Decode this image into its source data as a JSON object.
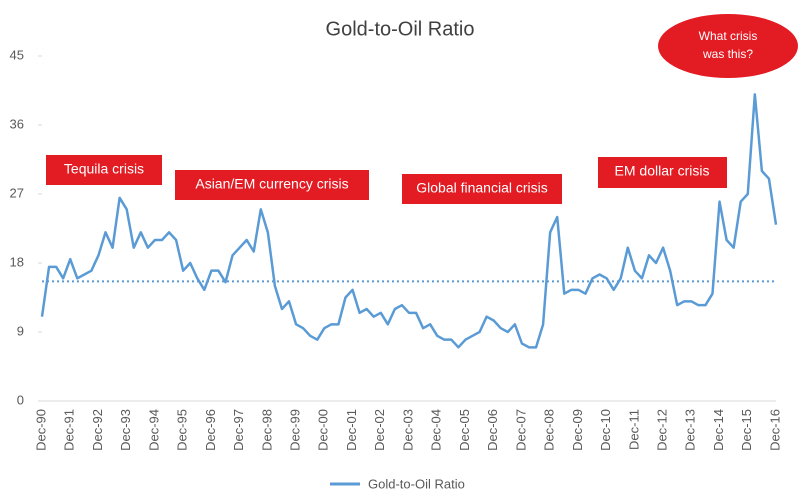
{
  "chart_data": {
    "type": "line",
    "title": "Gold-to-Oil Ratio",
    "categories": [
      "Dec-90",
      null,
      null,
      null,
      "Dec-91",
      null,
      null,
      null,
      "Dec-92",
      null,
      null,
      null,
      "Dec-93",
      null,
      null,
      null,
      "Dec-94",
      null,
      null,
      null,
      "Dec-95",
      null,
      null,
      null,
      "Dec-96",
      null,
      null,
      null,
      "Dec-97",
      null,
      null,
      null,
      "Dec-98",
      null,
      null,
      null,
      "Dec-99",
      null,
      null,
      null,
      "Dec-00",
      null,
      null,
      null,
      "Dec-01",
      null,
      null,
      null,
      "Dec-02",
      null,
      null,
      null,
      "Dec-03",
      null,
      null,
      null,
      "Dec-04",
      null,
      null,
      null,
      "Dec-05",
      null,
      null,
      null,
      "Dec-06",
      null,
      null,
      null,
      "Dec-07",
      null,
      null,
      null,
      "Dec-08",
      null,
      null,
      null,
      "Dec-09",
      null,
      null,
      null,
      "Dec-10",
      null,
      null,
      null,
      "Dec-11",
      null,
      null,
      null,
      "Dec-12",
      null,
      null,
      null,
      "Dec-13",
      null,
      null,
      null,
      "Dec-14",
      null,
      null,
      null,
      "Dec-15",
      null,
      null,
      null,
      "Dec-16"
    ],
    "series": [
      {
        "name": "Gold-to-Oil Ratio",
        "color": "#5b9bd5",
        "values": [
          11,
          17.5,
          17.5,
          16,
          18.5,
          16,
          16.5,
          17,
          19,
          22,
          20,
          26.5,
          25,
          20,
          22,
          20,
          21,
          21,
          22,
          21,
          17,
          18,
          16,
          14.5,
          17,
          17,
          15.5,
          19,
          20,
          21,
          19.5,
          25,
          22,
          15,
          12,
          13,
          10,
          9.5,
          8.5,
          8,
          9.5,
          10,
          10,
          13.5,
          14.5,
          11.5,
          12,
          11,
          11.5,
          10,
          12,
          12.5,
          11.5,
          11.5,
          9.5,
          10,
          8.5,
          8,
          8,
          7,
          8,
          8.5,
          9,
          11,
          10.5,
          9.5,
          9,
          10,
          7.5,
          7,
          7,
          10,
          22,
          24,
          14,
          14.5,
          14.5,
          14,
          16,
          16.5,
          16,
          14.5,
          16,
          20,
          17,
          16,
          19,
          18,
          20,
          17,
          12.5,
          13,
          13,
          12.5,
          12.5,
          14,
          26,
          21,
          20,
          26,
          27,
          40,
          30,
          29,
          23
        ]
      }
    ],
    "reference_line": {
      "value": 15.6,
      "color": "#5b9bd5"
    },
    "ylim": [
      0,
      45
    ],
    "yticks": [
      0,
      9,
      18,
      27,
      36,
      45
    ],
    "legend": "bottom",
    "annotations": [
      {
        "text": "Tequila crisis"
      },
      {
        "text": "Asian/EM currency crisis"
      },
      {
        "text": "Global financial crisis"
      },
      {
        "text": "EM dollar crisis"
      },
      {
        "lines": [
          "What crisis",
          "was this?"
        ]
      }
    ]
  }
}
